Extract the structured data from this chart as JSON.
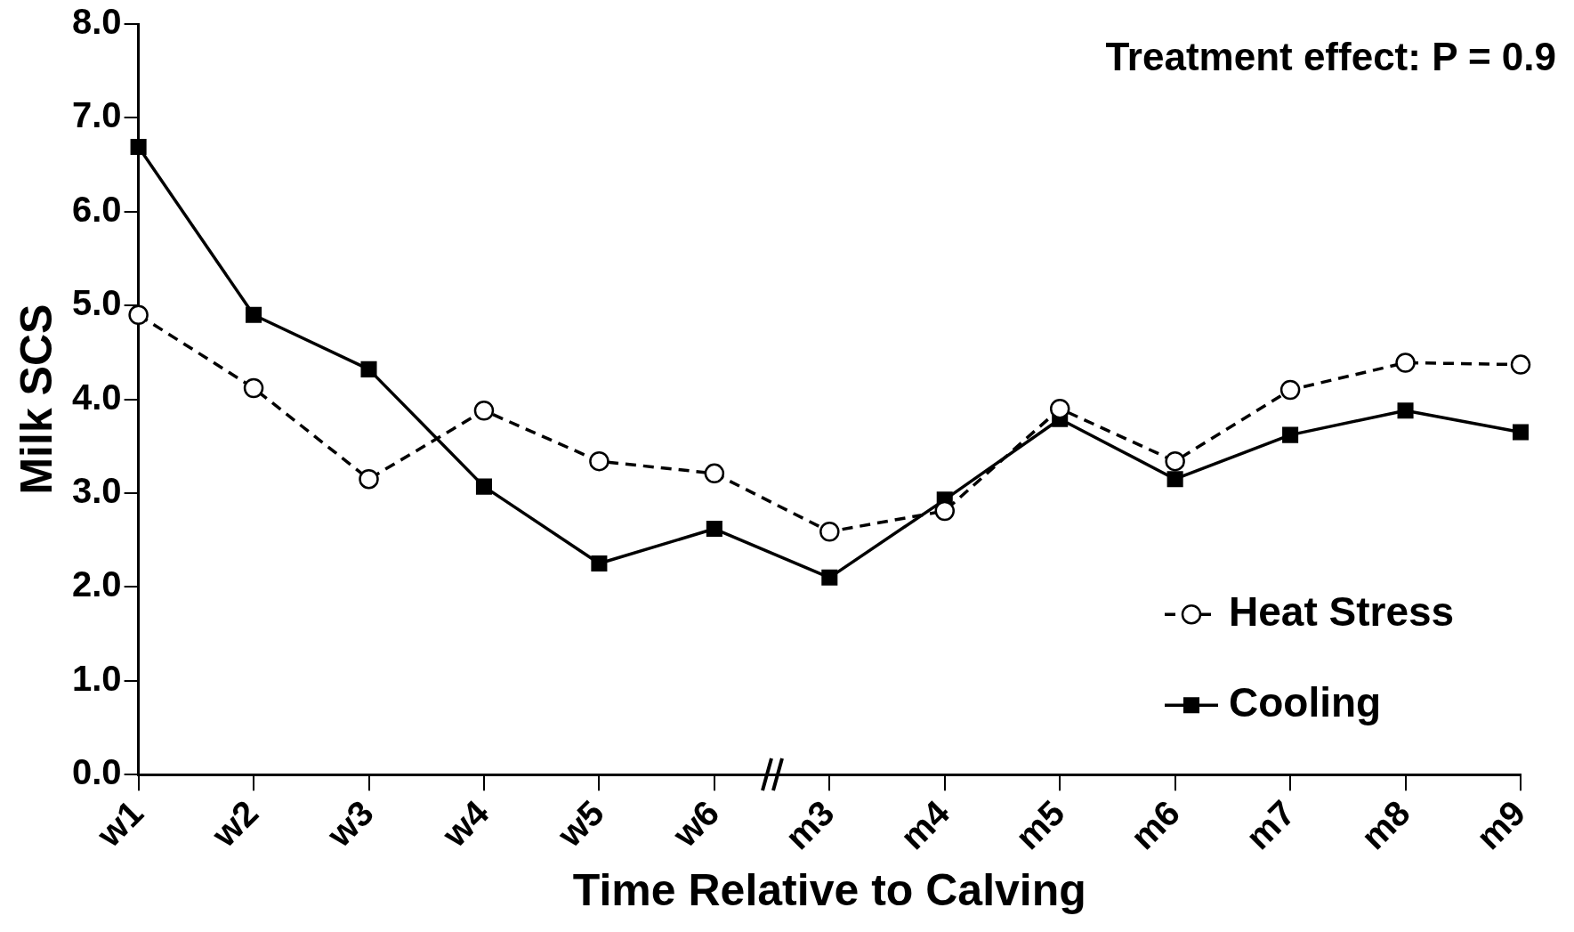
{
  "chart_data": {
    "type": "line",
    "xlabel": "Time Relative to Calving",
    "ylabel": "Milk SCS",
    "categories": [
      "w1",
      "w2",
      "w3",
      "w4",
      "w5",
      "w6",
      "m3",
      "m4",
      "m5",
      "m6",
      "m7",
      "m8",
      "m9"
    ],
    "series": [
      {
        "name": "Heat Stress",
        "color": "#000000",
        "marker": "circle",
        "line_style": "dashed",
        "values": [
          4.9,
          4.12,
          3.15,
          3.88,
          3.34,
          3.21,
          2.59,
          2.81,
          3.9,
          3.34,
          4.1,
          4.39,
          4.37
        ]
      },
      {
        "name": "Cooling",
        "color": "#000000",
        "marker": "square",
        "line_style": "solid",
        "values": [
          6.69,
          4.9,
          4.32,
          3.07,
          2.25,
          2.62,
          2.1,
          2.93,
          3.79,
          3.15,
          3.62,
          3.88,
          3.65
        ]
      }
    ],
    "ylim": [
      0,
      8
    ],
    "yticks": [
      {
        "value": 0,
        "label": "0.0"
      },
      {
        "value": 1,
        "label": "1.0"
      },
      {
        "value": 2,
        "label": "2.0"
      },
      {
        "value": 3,
        "label": "3.0"
      },
      {
        "value": 4,
        "label": "4.0"
      },
      {
        "value": 5,
        "label": "5.0"
      },
      {
        "value": 6,
        "label": "6.0"
      },
      {
        "value": 7,
        "label": "7.0"
      },
      {
        "value": 8,
        "label": "8.0"
      }
    ],
    "grid": false,
    "legend": "bottom right",
    "annotations": [
      "Treatment effect: P = 0.9"
    ]
  }
}
